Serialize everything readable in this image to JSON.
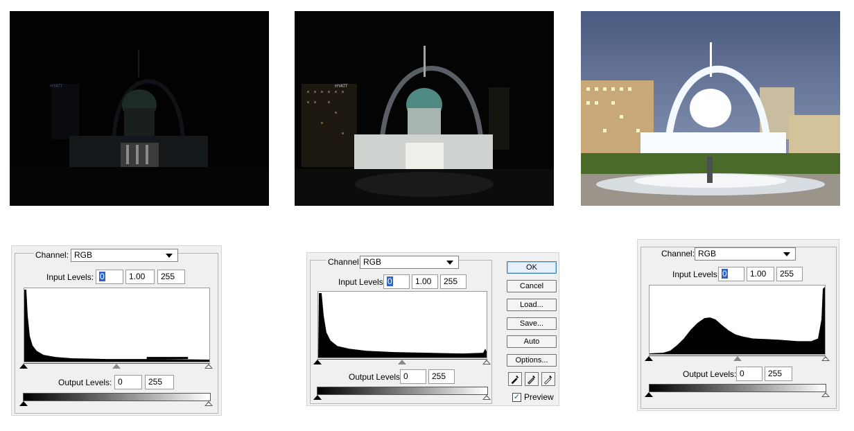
{
  "photos": [
    {
      "name": "dark-photo",
      "brightness": "very dark"
    },
    {
      "name": "normal-photo",
      "brightness": "normal"
    },
    {
      "name": "bright-photo",
      "brightness": "overexposed"
    }
  ],
  "hotel_sign": "HYATT",
  "dialogs": [
    {
      "channel_label": "Channel:",
      "channel_value": "RGB",
      "input_levels_label": "Input Levels:",
      "input_black": "0",
      "input_gamma": "1.00",
      "input_white": "255",
      "output_levels_label": "Output Levels:",
      "output_black": "0",
      "output_white": "255"
    },
    {
      "channel_label": "Channel:",
      "channel_value": "RGB",
      "input_levels_label": "Input Levels:",
      "input_black": "0",
      "input_gamma": "1.00",
      "input_white": "255",
      "output_levels_label": "Output Levels:",
      "output_black": "0",
      "output_white": "255",
      "buttons": {
        "ok": "OK",
        "cancel": "Cancel",
        "load": "Load...",
        "save": "Save...",
        "auto": "Auto",
        "options": "Options..."
      },
      "preview_label": "Preview",
      "preview_checked": true
    },
    {
      "channel_label": "Channel:",
      "channel_value": "RGB",
      "input_levels_label": "Input Levels:",
      "input_black": "0",
      "input_gamma": "1.00",
      "input_white": "255",
      "output_levels_label": "Output Levels:",
      "output_black": "0",
      "output_white": "255"
    }
  ],
  "colors": {
    "panel_bg": "#f0f0f0",
    "selection": "#2b64c6",
    "default_button": "#3c7fb1"
  }
}
